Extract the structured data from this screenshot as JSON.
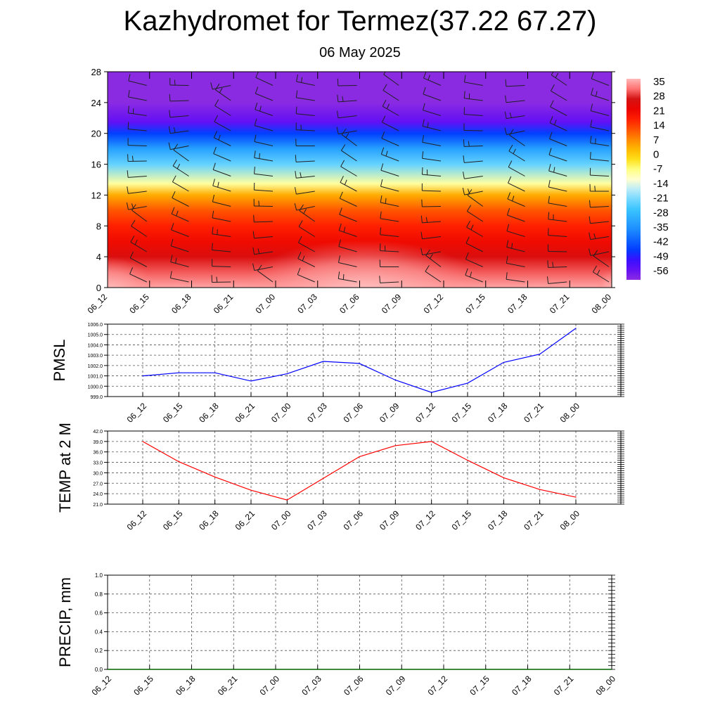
{
  "title": "Kazhydromet for Termez(37.22 67.27)",
  "subtitle": "06 May 2025",
  "time_labels": [
    "06_12",
    "06_15",
    "06_18",
    "06_21",
    "07_00",
    "07_03",
    "07_06",
    "07_09",
    "07_12",
    "07_15",
    "07_18",
    "07_21",
    "08_00"
  ],
  "chart_data": [
    {
      "type": "heatmap",
      "name": "vertical temperature cross-section",
      "x_ticks": [
        "06_12",
        "06_15",
        "06_18",
        "06_21",
        "07_00",
        "07_03",
        "07_06",
        "07_09",
        "07_12",
        "07_15",
        "07_18",
        "07_21",
        "08_00"
      ],
      "y_ticks": [
        0,
        4,
        8,
        12,
        16,
        20,
        24,
        28
      ],
      "ylim": [
        0,
        28
      ],
      "colorbar": {
        "labels": [
          "35",
          "28",
          "21",
          "14",
          "7",
          "0",
          "-7",
          "-14",
          "-21",
          "-28",
          "-35",
          "-42",
          "-49",
          "-56"
        ],
        "range": [
          -60,
          38
        ]
      },
      "temperature_profile": [
        {
          "y": 0,
          "value": 36
        },
        {
          "y": 2,
          "value": 32
        },
        {
          "y": 4,
          "value": 27
        },
        {
          "y": 6,
          "value": 22
        },
        {
          "y": 8,
          "value": 18
        },
        {
          "y": 10,
          "value": 13
        },
        {
          "y": 12,
          "value": 5
        },
        {
          "y": 13.5,
          "value": -8
        },
        {
          "y": 16,
          "value": -22
        },
        {
          "y": 18,
          "value": -32
        },
        {
          "y": 20,
          "value": -45
        },
        {
          "y": 21.5,
          "value": -55
        },
        {
          "y": 24,
          "value": -60
        },
        {
          "y": 28,
          "value": -60
        }
      ],
      "wind_barbs": true
    },
    {
      "type": "line",
      "ylabel": "PMSL",
      "x": [
        "06_12",
        "06_15",
        "06_18",
        "06_21",
        "07_00",
        "07_03",
        "07_06",
        "07_09",
        "07_12",
        "07_15",
        "07_18",
        "07_21",
        "08_00"
      ],
      "y_ticks": [
        "999.0",
        "1000.0",
        "1001.0",
        "1002.0",
        "1003.0",
        "1004.0",
        "1005.0",
        "1006.0"
      ],
      "ylim": [
        999,
        1006
      ],
      "series": [
        {
          "values": [
            1001.0,
            1001.3,
            1001.3,
            1000.5,
            1001.2,
            1002.4,
            1002.2,
            1000.6,
            999.4,
            1000.3,
            1002.3,
            1003.1,
            1005.6
          ],
          "color": "#0000ff"
        }
      ],
      "grid": true
    },
    {
      "type": "line",
      "ylabel": "TEMP at 2 M",
      "x": [
        "06_12",
        "06_15",
        "06_18",
        "06_21",
        "07_00",
        "07_03",
        "07_06",
        "07_09",
        "07_12",
        "07_15",
        "07_18",
        "07_21",
        "08_00"
      ],
      "y_ticks": [
        "21.0",
        "24.0",
        "27.0",
        "30.0",
        "33.0",
        "36.0",
        "39.0",
        "42.0"
      ],
      "ylim": [
        21,
        42
      ],
      "series": [
        {
          "values": [
            39.0,
            33.2,
            28.8,
            25.0,
            22.2,
            28.4,
            34.6,
            37.8,
            39.0,
            33.6,
            28.6,
            25.2,
            23.0
          ],
          "color": "#ff0000"
        }
      ],
      "grid": true
    },
    {
      "type": "line",
      "ylabel": "PRECIP, mm",
      "x": [
        "06_12",
        "06_15",
        "06_18",
        "06_21",
        "07_00",
        "07_03",
        "07_06",
        "07_09",
        "07_12",
        "07_15",
        "07_18",
        "07_21",
        "08_00"
      ],
      "y_ticks": [
        "0.0",
        "0.2",
        "0.4",
        "0.6",
        "0.8",
        "1.0"
      ],
      "ylim": [
        0,
        1
      ],
      "series": [
        {
          "values": [
            0,
            0,
            0,
            0,
            0,
            0,
            0,
            0,
            0,
            0,
            0,
            0,
            0
          ],
          "color": "#006400"
        }
      ],
      "grid": true
    }
  ]
}
